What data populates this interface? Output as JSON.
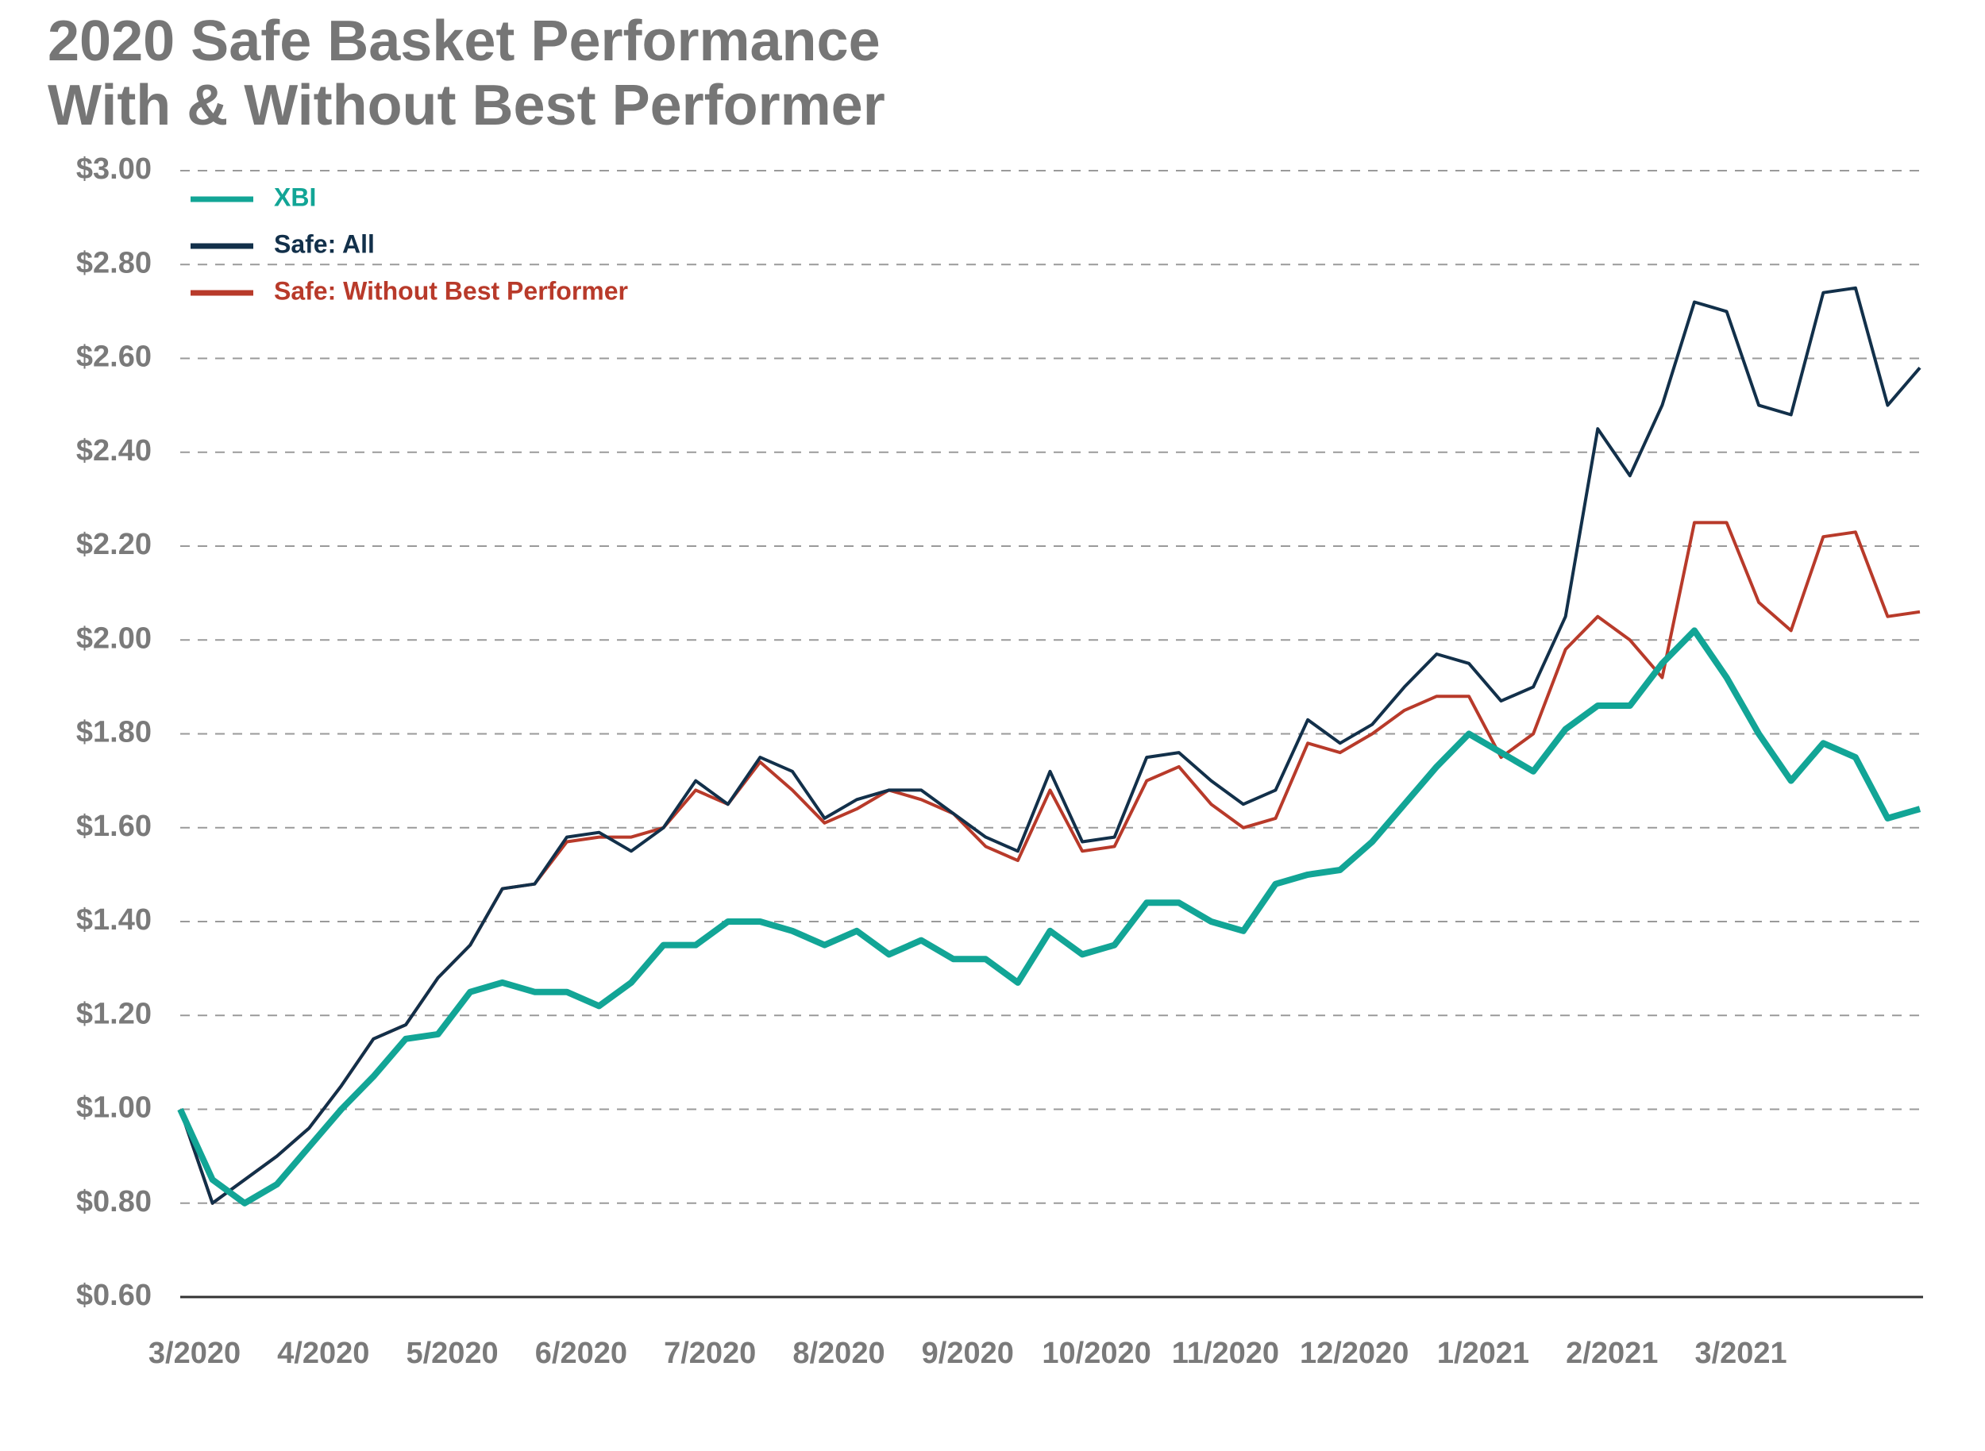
{
  "chart_data": {
    "type": "line",
    "title": [
      "2020 Safe Basket Performance",
      "With & Without Best Performer"
    ],
    "categories": [
      "3/2020",
      null,
      null,
      null,
      "4/2020",
      null,
      null,
      null,
      "5/2020",
      null,
      null,
      null,
      "6/2020",
      null,
      null,
      null,
      "7/2020",
      null,
      null,
      null,
      "8/2020",
      null,
      null,
      null,
      "9/2020",
      null,
      null,
      null,
      "10/2020",
      null,
      null,
      null,
      "11/2020",
      null,
      null,
      null,
      "12/2020",
      null,
      null,
      null,
      "1/2021",
      null,
      null,
      null,
      "2/2021",
      null,
      null,
      null,
      "3/2021",
      null,
      null,
      null,
      null,
      null,
      null
    ],
    "series": [
      {
        "name": "XBI",
        "color": "#12a596",
        "width": 8,
        "values": [
          1.0,
          0.85,
          0.8,
          0.84,
          0.92,
          1.0,
          1.07,
          1.15,
          1.16,
          1.25,
          1.27,
          1.25,
          1.25,
          1.22,
          1.27,
          1.35,
          1.35,
          1.4,
          1.4,
          1.38,
          1.35,
          1.38,
          1.33,
          1.36,
          1.32,
          1.32,
          1.27,
          1.38,
          1.33,
          1.35,
          1.44,
          1.44,
          1.4,
          1.38,
          1.48,
          1.5,
          1.51,
          1.57,
          1.65,
          1.73,
          1.8,
          1.76,
          1.72,
          1.81,
          1.86,
          1.86,
          1.95,
          2.02,
          1.92,
          1.8,
          1.7,
          1.78,
          1.75,
          1.62,
          1.64
        ]
      },
      {
        "name": "Safe: All",
        "color": "#12304a",
        "width": 4,
        "values": [
          1.0,
          0.8,
          0.85,
          0.9,
          0.96,
          1.05,
          1.15,
          1.18,
          1.28,
          1.35,
          1.47,
          1.48,
          1.58,
          1.59,
          1.55,
          1.6,
          1.7,
          1.65,
          1.75,
          1.72,
          1.62,
          1.66,
          1.68,
          1.68,
          1.63,
          1.58,
          1.55,
          1.72,
          1.57,
          1.58,
          1.75,
          1.76,
          1.7,
          1.65,
          1.68,
          1.83,
          1.78,
          1.82,
          1.9,
          1.97,
          1.95,
          1.87,
          1.9,
          2.05,
          2.45,
          2.35,
          2.5,
          2.72,
          2.7,
          2.5,
          2.48,
          2.74,
          2.75,
          2.5,
          2.58
        ]
      },
      {
        "name": "Safe: Without Best Performer",
        "color": "#b83a2a",
        "width": 4,
        "values": [
          1.0,
          0.8,
          0.85,
          0.9,
          0.96,
          1.05,
          1.15,
          1.18,
          1.28,
          1.35,
          1.47,
          1.48,
          1.57,
          1.58,
          1.58,
          1.6,
          1.68,
          1.65,
          1.74,
          1.68,
          1.61,
          1.64,
          1.68,
          1.66,
          1.63,
          1.56,
          1.53,
          1.68,
          1.55,
          1.56,
          1.7,
          1.73,
          1.65,
          1.6,
          1.62,
          1.78,
          1.76,
          1.8,
          1.85,
          1.88,
          1.88,
          1.75,
          1.8,
          1.98,
          2.05,
          2.0,
          1.92,
          2.25,
          2.25,
          2.08,
          2.02,
          2.22,
          2.23,
          2.05,
          2.06
        ]
      }
    ],
    "ylim": [
      0.6,
      3.0
    ],
    "yticks": [
      {
        "value": 0.6,
        "label": "$0.60"
      },
      {
        "value": 0.8,
        "label": "$0.80"
      },
      {
        "value": 1.0,
        "label": "$1.00"
      },
      {
        "value": 1.2,
        "label": "$1.20"
      },
      {
        "value": 1.4,
        "label": "$1.40"
      },
      {
        "value": 1.6,
        "label": "$1.60"
      },
      {
        "value": 1.8,
        "label": "$1.80"
      },
      {
        "value": 2.0,
        "label": "$2.00"
      },
      {
        "value": 2.2,
        "label": "$2.20"
      },
      {
        "value": 2.4,
        "label": "$2.40"
      },
      {
        "value": 2.6,
        "label": "$2.60"
      },
      {
        "value": 2.8,
        "label": "$2.80"
      },
      {
        "value": 3.0,
        "label": "$3.00"
      }
    ],
    "grid": true,
    "legend": "top-left"
  }
}
